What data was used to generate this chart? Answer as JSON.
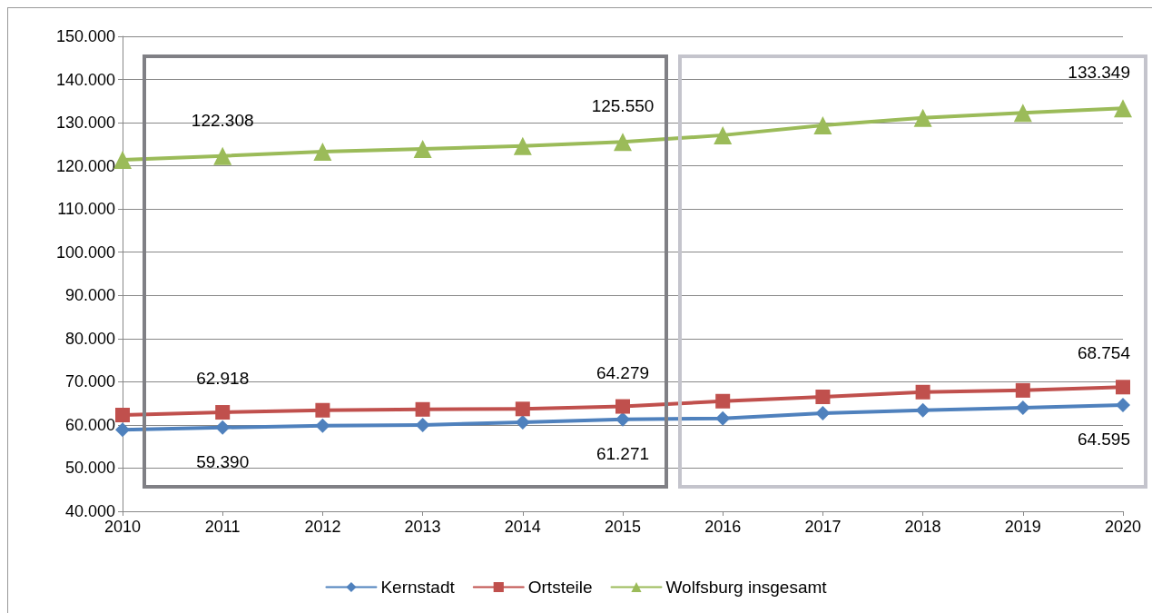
{
  "chart_data": {
    "type": "line",
    "categories": [
      "2010",
      "2011",
      "2012",
      "2013",
      "2014",
      "2015",
      "2016",
      "2017",
      "2018",
      "2019",
      "2020"
    ],
    "series": [
      {
        "name": "Kernstadt",
        "color": "#4f81bd",
        "marker": "diamond",
        "values": [
          58900,
          59390,
          59800,
          60000,
          60600,
          61271,
          61500,
          62700,
          63400,
          64000,
          64595
        ],
        "value_labels": [
          null,
          "59.390",
          null,
          null,
          null,
          "61.271",
          null,
          null,
          null,
          null,
          "64.595"
        ]
      },
      {
        "name": "Ortsteile",
        "color": "#c0504d",
        "marker": "square",
        "values": [
          62300,
          62918,
          63400,
          63600,
          63700,
          64279,
          65500,
          66500,
          67600,
          68000,
          68754
        ],
        "value_labels": [
          null,
          "62.918",
          null,
          null,
          null,
          "64.279",
          null,
          null,
          null,
          null,
          "68.754"
        ]
      },
      {
        "name": "Wolfsburg insgesamt",
        "color": "#9bbb59",
        "marker": "triangle",
        "values": [
          121400,
          122308,
          123300,
          123900,
          124600,
          125550,
          127100,
          129400,
          131100,
          132300,
          133349
        ],
        "value_labels": [
          null,
          "122.308",
          null,
          null,
          null,
          "125.550",
          null,
          null,
          null,
          null,
          "133.349"
        ]
      }
    ],
    "ylim": [
      40000,
      150000
    ],
    "yticks": [
      {
        "value": 40000,
        "label": "40.000"
      },
      {
        "value": 50000,
        "label": "50.000"
      },
      {
        "value": 60000,
        "label": "60.000"
      },
      {
        "value": 70000,
        "label": "70.000"
      },
      {
        "value": 80000,
        "label": "80.000"
      },
      {
        "value": 90000,
        "label": "90.000"
      },
      {
        "value": 100000,
        "label": "100.000"
      },
      {
        "value": 110000,
        "label": "110.000"
      },
      {
        "value": 120000,
        "label": "120.000"
      },
      {
        "value": 130000,
        "label": "130.000"
      },
      {
        "value": 140000,
        "label": "140.000"
      },
      {
        "value": 150000,
        "label": "150.000"
      }
    ],
    "grid": "y",
    "legend": "bottom",
    "line_style": "solid"
  }
}
